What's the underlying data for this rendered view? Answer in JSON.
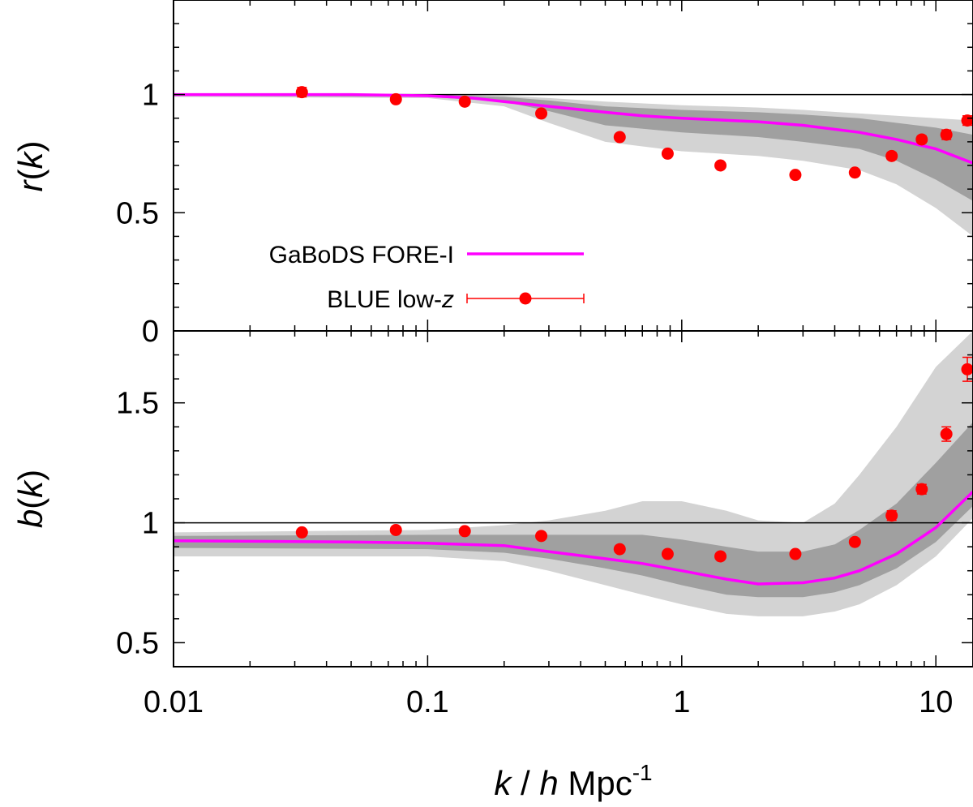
{
  "chart_data": [
    {
      "type": "line",
      "panel": "top",
      "ylabel": "r(k)",
      "ylabel_parts": {
        "italic_main": "r",
        "paren_open": "(",
        "italic_var": "k",
        "paren_close": ")"
      },
      "xscale": "log",
      "xlim": [
        0.01,
        14
      ],
      "ylim": [
        0,
        1.4
      ],
      "yticks": [
        0,
        0.5,
        1
      ],
      "ytick_labels": [
        "0",
        "0.5",
        "1"
      ],
      "reference_line": 1,
      "colors": {
        "model": "#ff00ff",
        "data": "#ff0000",
        "band_outer": "#d3d3d3",
        "band_inner": "#a0a0a0"
      },
      "series": [
        {
          "name": "GaBoDS FORE-I",
          "kind": "line",
          "x": [
            0.01,
            0.05,
            0.1,
            0.15,
            0.2,
            0.3,
            0.5,
            0.7,
            1.0,
            2.0,
            3.0,
            5.0,
            7.0,
            10.0,
            14.0
          ],
          "y": [
            1.0,
            1.0,
            0.995,
            0.985,
            0.97,
            0.95,
            0.925,
            0.91,
            0.9,
            0.885,
            0.87,
            0.84,
            0.81,
            0.77,
            0.71
          ]
        },
        {
          "name": "BLUE low-z",
          "kind": "points",
          "x": [
            0.032,
            0.075,
            0.14,
            0.28,
            0.57,
            0.88,
            1.42,
            2.8,
            4.8,
            6.7,
            8.8,
            11.0,
            13.3
          ],
          "y": [
            1.01,
            0.98,
            0.97,
            0.92,
            0.82,
            0.75,
            0.7,
            0.66,
            0.67,
            0.74,
            0.81,
            0.83,
            0.89
          ],
          "yerr": [
            0.02,
            0.01,
            0.01,
            0.01,
            0.01,
            0.01,
            0.01,
            0.01,
            0.01,
            0.015,
            0.015,
            0.02,
            0.02
          ]
        }
      ],
      "bands": [
        {
          "name": "outer",
          "x": [
            0.01,
            0.1,
            0.2,
            0.3,
            0.5,
            1.0,
            2.0,
            3.0,
            5.0,
            7.0,
            10.0,
            14.0
          ],
          "lower": [
            0.99,
            0.985,
            0.95,
            0.88,
            0.8,
            0.76,
            0.74,
            0.72,
            0.68,
            0.62,
            0.52,
            0.4
          ],
          "upper": [
            1.0,
            1.0,
            0.995,
            0.985,
            0.97,
            0.955,
            0.945,
            0.935,
            0.92,
            0.91,
            0.9,
            0.89
          ]
        },
        {
          "name": "inner",
          "x": [
            0.01,
            0.1,
            0.2,
            0.3,
            0.5,
            1.0,
            2.0,
            3.0,
            5.0,
            7.0,
            10.0,
            14.0
          ],
          "lower": [
            0.995,
            0.99,
            0.97,
            0.93,
            0.87,
            0.84,
            0.82,
            0.8,
            0.77,
            0.72,
            0.64,
            0.55
          ],
          "upper": [
            1.0,
            1.0,
            0.99,
            0.975,
            0.95,
            0.935,
            0.925,
            0.915,
            0.9,
            0.88,
            0.86,
            0.83
          ]
        }
      ],
      "legend": {
        "placement": "lower-left",
        "entries": [
          {
            "label": "GaBoDS FORE-I",
            "kind": "line"
          },
          {
            "label_prefix": "BLUE low-",
            "label_italic": "z",
            "kind": "points"
          }
        ]
      }
    },
    {
      "type": "line",
      "panel": "bottom",
      "ylabel": "b(k)",
      "ylabel_parts": {
        "italic_main": "b",
        "paren_open": "(",
        "italic_var": "k",
        "paren_close": ")"
      },
      "xscale": "log",
      "xlim": [
        0.01,
        14
      ],
      "ylim": [
        0.4,
        1.8
      ],
      "yticks": [
        0.5,
        1,
        1.5
      ],
      "ytick_labels": [
        "0.5",
        "1",
        "1.5"
      ],
      "reference_line": 1,
      "series": [
        {
          "name": "GaBoDS FORE-I",
          "kind": "line",
          "x": [
            0.01,
            0.05,
            0.1,
            0.2,
            0.3,
            0.5,
            0.7,
            1.0,
            1.5,
            2.0,
            3.0,
            4.0,
            5.0,
            7.0,
            10.0,
            14.0
          ],
          "y": [
            0.925,
            0.92,
            0.915,
            0.905,
            0.88,
            0.85,
            0.83,
            0.8,
            0.765,
            0.745,
            0.75,
            0.77,
            0.8,
            0.87,
            0.98,
            1.13
          ]
        },
        {
          "name": "BLUE low-z",
          "kind": "points",
          "x": [
            0.032,
            0.075,
            0.14,
            0.28,
            0.57,
            0.88,
            1.42,
            2.8,
            4.8,
            6.7,
            8.8,
            11.0,
            13.3
          ],
          "y": [
            0.96,
            0.97,
            0.965,
            0.945,
            0.89,
            0.87,
            0.86,
            0.87,
            0.92,
            1.03,
            1.14,
            1.37,
            1.64
          ],
          "yerr": [
            0.01,
            0.01,
            0.01,
            0.01,
            0.01,
            0.01,
            0.01,
            0.01,
            0.01,
            0.02,
            0.02,
            0.03,
            0.05
          ]
        }
      ],
      "bands": [
        {
          "name": "outer",
          "x": [
            0.01,
            0.1,
            0.2,
            0.3,
            0.5,
            0.7,
            1.0,
            1.5,
            2.0,
            3.0,
            4.0,
            5.0,
            7.0,
            10.0,
            14.0
          ],
          "lower": [
            0.86,
            0.86,
            0.84,
            0.8,
            0.74,
            0.7,
            0.66,
            0.62,
            0.61,
            0.61,
            0.63,
            0.66,
            0.74,
            0.86,
            1.02
          ],
          "upper": [
            0.96,
            0.97,
            0.99,
            1.01,
            1.05,
            1.09,
            1.09,
            1.05,
            1.01,
            1.0,
            1.08,
            1.2,
            1.4,
            1.65,
            1.8
          ]
        },
        {
          "name": "inner",
          "x": [
            0.01,
            0.1,
            0.2,
            0.3,
            0.5,
            0.7,
            1.0,
            1.5,
            2.0,
            3.0,
            4.0,
            5.0,
            7.0,
            10.0,
            14.0
          ],
          "lower": [
            0.895,
            0.89,
            0.875,
            0.85,
            0.81,
            0.78,
            0.74,
            0.7,
            0.69,
            0.69,
            0.71,
            0.74,
            0.81,
            0.92,
            1.07
          ],
          "upper": [
            0.945,
            0.95,
            0.95,
            0.95,
            0.95,
            0.95,
            0.93,
            0.9,
            0.88,
            0.88,
            0.91,
            0.97,
            1.08,
            1.25,
            1.42
          ]
        }
      ]
    }
  ],
  "xaxis": {
    "tick_values": [
      0.01,
      0.1,
      1,
      10
    ],
    "tick_labels": [
      "0.01",
      "0.1",
      "1",
      "10"
    ],
    "label_k": "k",
    "label_slash": " / ",
    "label_h": "h",
    "label_unit": " Mpc",
    "label_exp": "-1"
  }
}
